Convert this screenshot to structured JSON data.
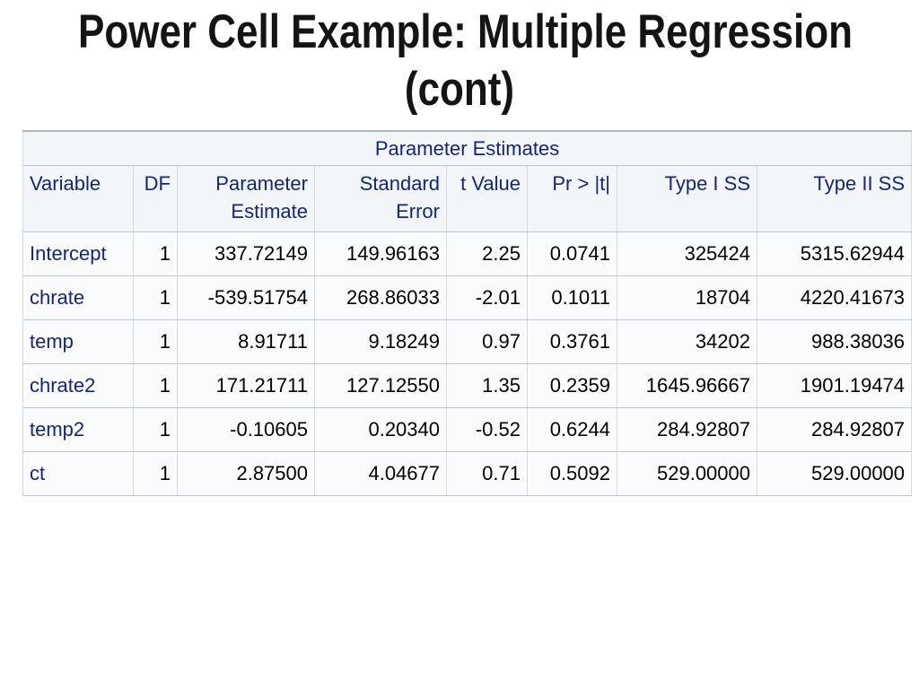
{
  "slide": {
    "title_line1": "Power Cell Example: Multiple Regression",
    "title_line2": "(cont)"
  },
  "table": {
    "title": "Parameter Estimates",
    "column_labels": [
      "Variable",
      "DF",
      "Parameter Estimate",
      "Standard Error",
      "t Value",
      "Pr > |t|",
      "Type I SS",
      "Type II SS"
    ],
    "rows": [
      [
        "Intercept",
        "1",
        "337.72149",
        "149.96163",
        "2.25",
        "0.0741",
        "325424",
        "5315.62944"
      ],
      [
        "chrate",
        "1",
        "-539.51754",
        "268.86033",
        "-2.01",
        "0.1011",
        "18704",
        "4220.41673"
      ],
      [
        "temp",
        "1",
        "8.91711",
        "9.18249",
        "0.97",
        "0.3761",
        "34202",
        "988.38036"
      ],
      [
        "chrate2",
        "1",
        "171.21711",
        "127.12550",
        "1.35",
        "0.2359",
        "1645.96667",
        "1901.19474"
      ],
      [
        "temp2",
        "1",
        "-0.10605",
        "0.20340",
        "-0.52",
        "0.6244",
        "284.92807",
        "284.92807"
      ],
      [
        "ct",
        "1",
        "2.87500",
        "4.04677",
        "0.71",
        "0.5092",
        "529.00000",
        "529.00000"
      ]
    ]
  },
  "colors": {
    "slide_title_text": "#141414",
    "table_header_text": "#15247d",
    "table_header_background": "#f3f6f9",
    "table_cell_background": "#fafbfd",
    "table_data_text": "#000000",
    "border_horizontal": "#bfc5cb",
    "border_vertical": "#d6dbe0"
  }
}
